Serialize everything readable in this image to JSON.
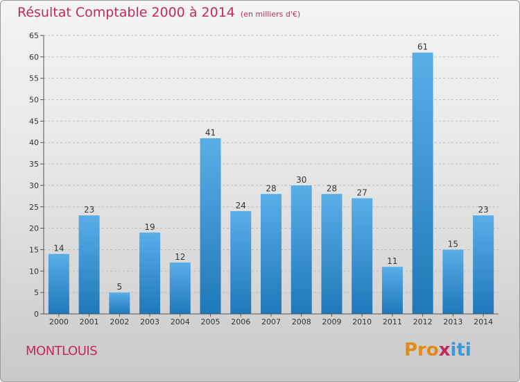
{
  "title": "Résultat Comptable 2000 à 2014",
  "unit": "(en milliers d'€)",
  "commune": "MONTLOUIS",
  "logo": {
    "text": "Proxiti",
    "p1": "Pro",
    "p2": "x",
    "p3": "iti"
  },
  "colors": {
    "bar_top": "#5aaee8",
    "bar_bottom": "#1f78b8",
    "title": "#c22a5a"
  },
  "chart_data": {
    "type": "bar",
    "title": "Résultat Comptable 2000 à 2014",
    "ylabel": "(en milliers d'€)",
    "xlabel": "",
    "categories": [
      "2000",
      "2001",
      "2002",
      "2003",
      "2004",
      "2005",
      "2006",
      "2007",
      "2008",
      "2009",
      "2010",
      "2011",
      "2012",
      "2013",
      "2014"
    ],
    "values": [
      14,
      23,
      5,
      19,
      12,
      41,
      24,
      28,
      30,
      28,
      27,
      11,
      61,
      15,
      23
    ],
    "ylim": [
      0,
      65
    ],
    "yticks": [
      0,
      5,
      10,
      15,
      20,
      25,
      30,
      35,
      40,
      45,
      50,
      55,
      60,
      65
    ],
    "grid": true
  }
}
